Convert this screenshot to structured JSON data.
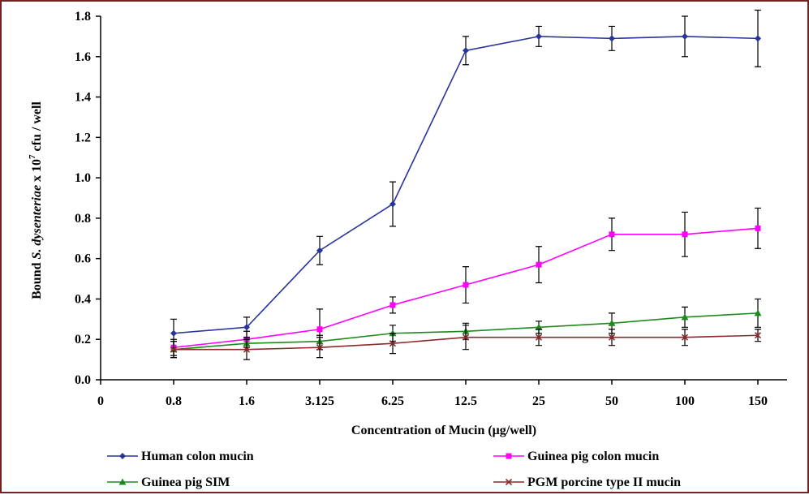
{
  "chart_data": {
    "type": "line",
    "xlabel": "Concentration of Mucin (μg/well)",
    "ylabel": {
      "part1": "Bound ",
      "part2": "S. dysenteriae",
      "part3": " x 10",
      "sup": "7",
      "part4": " cfu / well"
    },
    "x_ticks": [
      "0",
      "0.8",
      "1.6",
      "3.125",
      "6.25",
      "12.5",
      "25",
      "50",
      "100",
      "150"
    ],
    "categories": [
      "0.8",
      "1.6",
      "3.125",
      "6.25",
      "12.5",
      "25",
      "50",
      "100",
      "150"
    ],
    "y_ticks": [
      "0.0",
      "0.2",
      "0.4",
      "0.6",
      "0.8",
      "1.0",
      "1.2",
      "1.4",
      "1.6",
      "1.8"
    ],
    "ylim": [
      0,
      1.8
    ],
    "series": [
      {
        "name": "Human colon mucin",
        "color": "#27349a",
        "marker": "diamond",
        "values": [
          0.23,
          0.26,
          0.64,
          0.87,
          1.63,
          1.7,
          1.69,
          1.7,
          1.69
        ],
        "errors": [
          0.07,
          0.05,
          0.07,
          0.11,
          0.07,
          0.05,
          0.06,
          0.1,
          0.14
        ]
      },
      {
        "name": "Guinea pig colon mucin",
        "color": "#ff00ff",
        "marker": "square",
        "values": [
          0.16,
          0.2,
          0.25,
          0.37,
          0.47,
          0.57,
          0.72,
          0.72,
          0.75
        ],
        "errors": [
          0.04,
          0.04,
          0.1,
          0.04,
          0.09,
          0.09,
          0.08,
          0.11,
          0.1
        ]
      },
      {
        "name": "Guinea pig SIM",
        "color": "#1e8a1e",
        "marker": "triangle",
        "values": [
          0.15,
          0.18,
          0.19,
          0.23,
          0.24,
          0.26,
          0.28,
          0.31,
          0.33
        ],
        "errors": [
          0.04,
          0.03,
          0.03,
          0.04,
          0.04,
          0.03,
          0.05,
          0.05,
          0.07
        ]
      },
      {
        "name": "PGM porcine type II mucin",
        "color": "#8b2a2a",
        "marker": "x",
        "values": [
          0.15,
          0.15,
          0.16,
          0.18,
          0.21,
          0.21,
          0.21,
          0.21,
          0.22
        ],
        "errors": [
          0.04,
          0.05,
          0.05,
          0.05,
          0.06,
          0.04,
          0.04,
          0.04,
          0.03
        ]
      }
    ],
    "legend_position": "bottom"
  }
}
